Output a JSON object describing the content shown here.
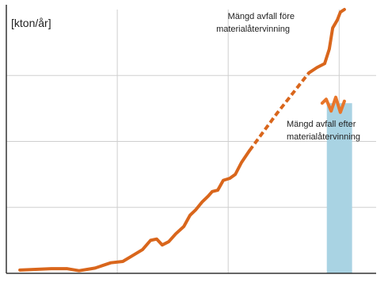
{
  "chart_data": {
    "type": "line",
    "y_label": "[kton/år]",
    "annotations": [
      {
        "lines": [
          "Mängd avfall före",
          "materialåtervinning"
        ]
      },
      {
        "lines": [
          "Mängd avfall efter",
          "materialåtervinning"
        ]
      }
    ],
    "xlim": [
      0,
      120
    ],
    "ylim": [
      0,
      4
    ],
    "xgrid": [
      36,
      72,
      108
    ],
    "ygrid": [
      1,
      2,
      3
    ],
    "grid": true,
    "series": [
      {
        "color": "#d9661c",
        "dashed": false,
        "x": [
          4.4,
          9.5,
          14.6,
          19.8,
          23.6,
          28.8,
          33.9,
          37.8,
          40.3,
          44.2,
          46.8,
          48.8,
          50.6,
          52.7,
          55.0,
          57.6,
          59.6,
          61.4,
          63.5,
          65.5,
          66.8,
          68.6,
          70.4,
          72.5,
          74.3,
          76.3,
          78.9
        ],
        "values": [
          0.05,
          0.06,
          0.07,
          0.07,
          0.04,
          0.08,
          0.16,
          0.18,
          0.25,
          0.36,
          0.5,
          0.52,
          0.43,
          0.48,
          0.6,
          0.71,
          0.88,
          0.96,
          1.08,
          1.17,
          1.24,
          1.26,
          1.41,
          1.44,
          1.5,
          1.68,
          1.86
        ]
      },
      {
        "color": "#d9661c",
        "dashed": true,
        "x": [
          78.9,
          87.9,
          98.2
        ],
        "values": [
          1.86,
          2.43,
          3.04
        ]
      },
      {
        "color": "#d9661c",
        "dashed": false,
        "x": [
          98.2,
          100.8,
          103.3,
          104.8,
          105.9,
          107.4,
          108.4,
          109.7
        ],
        "values": [
          3.04,
          3.12,
          3.18,
          3.4,
          3.72,
          3.84,
          3.96,
          4.0
        ]
      },
      {
        "color": "#e8762a",
        "dashed": false,
        "x": [
          102.5,
          103.8,
          105.4,
          106.9,
          108.4,
          109.7
        ],
        "values": [
          2.58,
          2.64,
          2.46,
          2.67,
          2.44,
          2.61
        ]
      }
    ],
    "bar": {
      "x": [
        104,
        112.2
      ],
      "value": 2.58,
      "color": "#a9d3e3"
    }
  }
}
